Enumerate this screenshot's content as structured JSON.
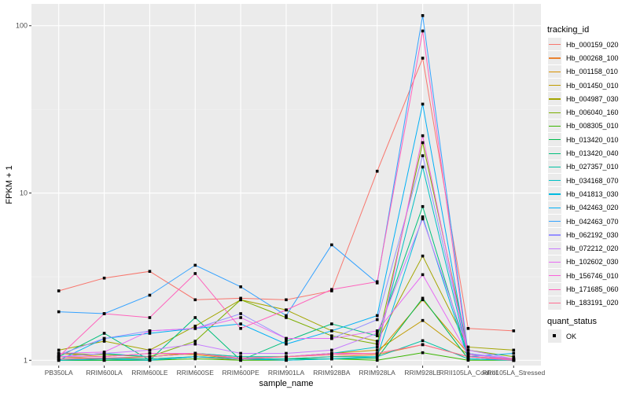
{
  "chart_data": {
    "type": "line",
    "title": "",
    "xlabel": "sample_name",
    "ylabel": "FPKM + 1",
    "yscale": "log10",
    "ylim": [
      0.93,
      135
    ],
    "yticks": [
      {
        "value": 1,
        "label": "1"
      },
      {
        "value": 10,
        "label": "10"
      },
      {
        "value": 100,
        "label": "100"
      }
    ],
    "grid": true,
    "legend_position": "right",
    "categories": [
      "PB350LA",
      "RRIM600LA",
      "RRIM600LE",
      "RRIM600SE",
      "RRIM600PE",
      "RRIM901LA",
      "RRIM928BA",
      "RRIM928LA",
      "RRIM928LE",
      "RRII105LA_Control",
      "RRII105LA_Stressed"
    ],
    "legend_title": "tracking_id",
    "series": [
      {
        "name": "Hb_000159_020",
        "color": "#F8766D",
        "values": [
          2.6,
          3.1,
          3.4,
          2.3,
          2.35,
          2.3,
          2.6,
          13.5,
          64,
          1.55,
          1.5
        ]
      },
      {
        "name": "Hb_000268_100",
        "color": "#EA8331",
        "values": [
          1.02,
          1.0,
          1.02,
          1.05,
          1.0,
          1.02,
          1.05,
          1.08,
          1.24,
          1.05,
          1.0
        ]
      },
      {
        "name": "Hb_001158_010",
        "color": "#D89000",
        "values": [
          1.1,
          1.05,
          1.1,
          1.08,
          1.02,
          1.05,
          1.08,
          1.1,
          2.3,
          1.1,
          1.0
        ]
      },
      {
        "name": "Hb_001450_010",
        "color": "#C09B00",
        "values": [
          1.05,
          1.02,
          1.05,
          1.1,
          1.05,
          1.05,
          1.1,
          1.15,
          1.73,
          1.08,
          1.02
        ]
      },
      {
        "name": "Hb_004987_030",
        "color": "#A3A500",
        "values": [
          1.15,
          1.3,
          1.15,
          1.6,
          2.3,
          2.0,
          1.5,
          1.3,
          4.2,
          1.2,
          1.15
        ]
      },
      {
        "name": "Hb_006040_160",
        "color": "#7CAE00",
        "values": [
          1.1,
          1.08,
          1.05,
          1.3,
          2.3,
          1.8,
          1.4,
          1.25,
          20,
          1.15,
          1.05
        ]
      },
      {
        "name": "Hb_008305_010",
        "color": "#39B600",
        "values": [
          1.0,
          1.0,
          1.0,
          1.02,
          1.0,
          1.0,
          1.02,
          1.0,
          1.11,
          1.0,
          1.0
        ]
      },
      {
        "name": "Hb_013420_010",
        "color": "#00BB4E",
        "values": [
          1.0,
          1.0,
          1.0,
          1.05,
          1.02,
          1.02,
          1.02,
          1.03,
          2.35,
          1.02,
          1.0
        ]
      },
      {
        "name": "Hb_013420_040",
        "color": "#00BF7D",
        "values": [
          1.05,
          1.45,
          1.0,
          1.8,
          1.0,
          1.3,
          1.65,
          1.4,
          8.3,
          1.05,
          1.0
        ]
      },
      {
        "name": "Hb_027357_010",
        "color": "#00C1A3",
        "values": [
          1.02,
          1.03,
          1.02,
          1.05,
          1.02,
          1.02,
          1.05,
          1.05,
          1.31,
          1.02,
          1.0
        ]
      },
      {
        "name": "Hb_034168_070",
        "color": "#00BFC4",
        "values": [
          1.05,
          1.1,
          1.05,
          1.1,
          1.05,
          1.05,
          1.1,
          1.2,
          14.3,
          1.05,
          1.02
        ]
      },
      {
        "name": "Hb_041813_030",
        "color": "#00BAE0",
        "values": [
          1.0,
          1.02,
          1.0,
          1.05,
          1.02,
          1.0,
          1.02,
          1.05,
          7.2,
          1.02,
          1.0
        ]
      },
      {
        "name": "Hb_042463_020",
        "color": "#00B0F6",
        "values": [
          1.0,
          1.35,
          1.45,
          1.55,
          1.65,
          1.25,
          1.5,
          1.85,
          34,
          1.05,
          1.1
        ]
      },
      {
        "name": "Hb_042463_070",
        "color": "#35A2FF",
        "values": [
          1.95,
          1.9,
          2.45,
          3.7,
          2.75,
          1.85,
          4.9,
          2.9,
          115,
          1.1,
          1.0
        ]
      },
      {
        "name": "Hb_062192_030",
        "color": "#9590FF",
        "values": [
          1.08,
          1.35,
          1.5,
          1.55,
          1.9,
          1.35,
          1.35,
          1.75,
          16.7,
          1.1,
          1.02
        ]
      },
      {
        "name": "Hb_072212_020",
        "color": "#C77CFF",
        "values": [
          1.05,
          1.1,
          1.15,
          1.25,
          1.1,
          1.1,
          1.15,
          1.45,
          7.0,
          1.15,
          1.02
        ]
      },
      {
        "name": "Hb_102602_030",
        "color": "#E76BF3",
        "values": [
          1.1,
          1.12,
          1.5,
          1.55,
          1.8,
          1.35,
          1.35,
          1.5,
          3.25,
          1.08,
          1.02
        ]
      },
      {
        "name": "Hb_156746_010",
        "color": "#FA62DB",
        "values": [
          1.05,
          1.05,
          1.1,
          1.1,
          1.02,
          1.05,
          1.1,
          1.1,
          22,
          1.05,
          1.0
        ]
      },
      {
        "name": "Hb_171685_060",
        "color": "#FF62BC",
        "values": [
          1.05,
          1.9,
          1.8,
          3.3,
          1.55,
          2.0,
          2.65,
          2.95,
          93,
          1.05,
          1.0
        ]
      },
      {
        "name": "Hb_183191_020",
        "color": "#FF6C91",
        "values": [
          1.02,
          1.03,
          1.05,
          1.1,
          1.03,
          1.05,
          1.08,
          1.1,
          1.24,
          1.05,
          1.02
        ]
      }
    ],
    "shape_legend": {
      "title": "quant_status",
      "items": [
        "OK"
      ]
    }
  }
}
